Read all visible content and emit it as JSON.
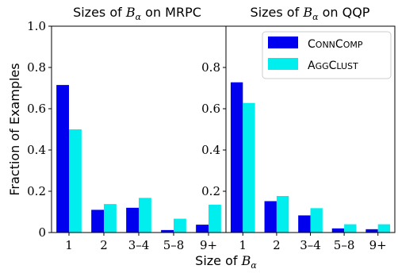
{
  "chart_data": [
    {
      "type": "bar",
      "title": {
        "prefix": "Sizes of ",
        "var_main": "B",
        "var_sub": "α",
        "suffix": " on MRPC"
      },
      "categories": [
        "1",
        "2",
        "3–4",
        "5–8",
        "9+"
      ],
      "series": [
        {
          "name": "ConnComp",
          "values": [
            0.715,
            0.11,
            0.12,
            0.012,
            0.038
          ]
        },
        {
          "name": "AggClust",
          "values": [
            0.5,
            0.138,
            0.168,
            0.067,
            0.135
          ]
        }
      ],
      "ylim": [
        0,
        1.0
      ],
      "yticks": [
        "0",
        "0.2",
        "0.4",
        "0.6",
        "0.8",
        "1.0"
      ],
      "ylabel": "Fraction of Examples"
    },
    {
      "type": "bar",
      "title": {
        "prefix": "Sizes of ",
        "var_main": "B",
        "var_sub": "α",
        "suffix": " on QQP"
      },
      "categories": [
        "1",
        "2",
        "3–4",
        "5–8",
        "9+"
      ],
      "series": [
        {
          "name": "ConnComp",
          "values": [
            0.728,
            0.152,
            0.083,
            0.02,
            0.016
          ]
        },
        {
          "name": "AggClust",
          "values": [
            0.628,
            0.177,
            0.118,
            0.04,
            0.04
          ]
        }
      ],
      "ylim": [
        0,
        1.0
      ],
      "yticks": [
        "0.2",
        "0.4",
        "0.6",
        "0.8"
      ]
    }
  ],
  "legend": {
    "placement": "top-right",
    "items": [
      {
        "first": "C",
        "rest": "ONN",
        "first2": "C",
        "rest2": "OMP",
        "color": "#0000ee"
      },
      {
        "first": "A",
        "rest": "GG",
        "first2": "C",
        "rest2": "LUST",
        "color": "#00eeee"
      }
    ]
  },
  "xlabel": {
    "prefix": "Size of ",
    "var_main": "B",
    "var_sub": "α"
  },
  "colors": {
    "series1": "#0000ee",
    "series2": "#00eeee"
  }
}
